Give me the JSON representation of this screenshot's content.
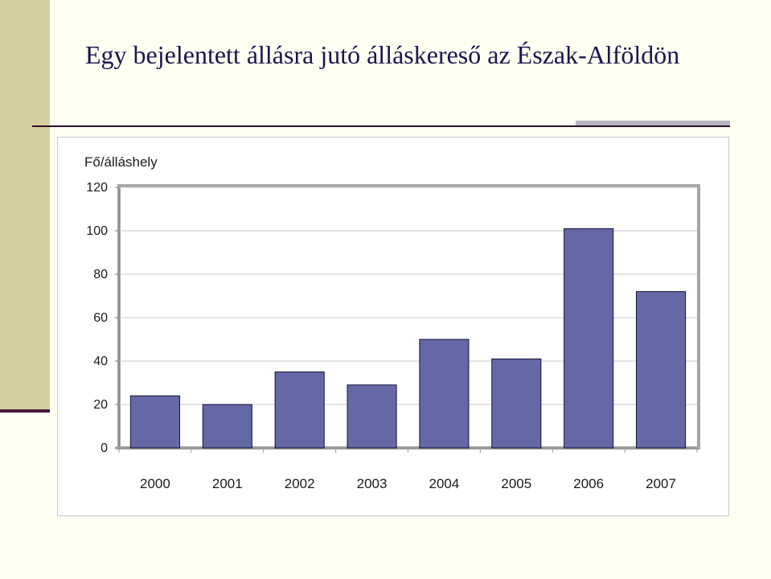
{
  "slide": {
    "title": "Egy bejelentett állásra jutó álláskereső az Észak-Alföldön"
  },
  "chart_data": {
    "type": "bar",
    "ylabel": "Fő/álláshely",
    "categories": [
      "2000",
      "2001",
      "2002",
      "2003",
      "2004",
      "2005",
      "2006",
      "2007"
    ],
    "values": [
      24,
      20,
      35,
      29,
      50,
      41,
      101,
      72
    ],
    "ylim": [
      0,
      120
    ],
    "yticks": [
      0,
      20,
      40,
      60,
      80,
      100,
      120
    ],
    "grid": true,
    "legend": "none",
    "bar_color": "#6468a4"
  }
}
